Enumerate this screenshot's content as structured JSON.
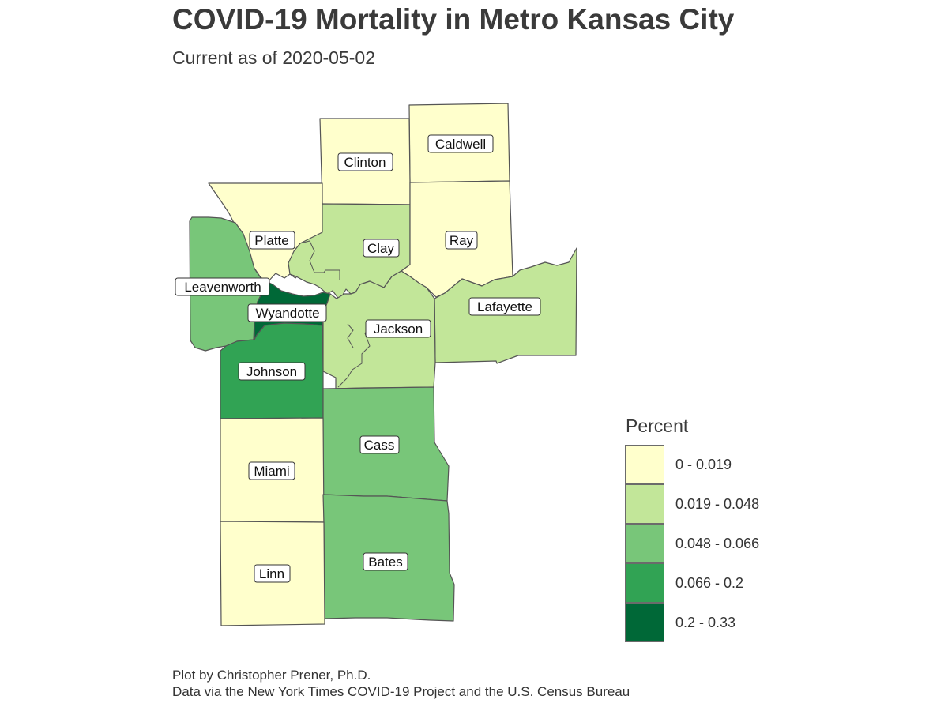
{
  "title": "COVID-19 Mortality in Metro Kansas City",
  "subtitle": "Current as of 2020-05-02",
  "legend": {
    "title": "Percent",
    "bins": [
      {
        "label": "0 - 0.019",
        "color": "#ffffcc"
      },
      {
        "label": "0.019 - 0.048",
        "color": "#c2e699"
      },
      {
        "label": "0.048 - 0.066",
        "color": "#78c679"
      },
      {
        "label": "0.066 - 0.2",
        "color": "#31a354"
      },
      {
        "label": "0.2 - 0.33",
        "color": "#006837"
      }
    ]
  },
  "counties": [
    {
      "name": "Caldwell",
      "bin": 0
    },
    {
      "name": "Clinton",
      "bin": 0
    },
    {
      "name": "Platte",
      "bin": 0
    },
    {
      "name": "Clay",
      "bin": 1
    },
    {
      "name": "Ray",
      "bin": 0
    },
    {
      "name": "Leavenworth",
      "bin": 2
    },
    {
      "name": "Wyandotte",
      "bin": 4
    },
    {
      "name": "Lafayette",
      "bin": 1
    },
    {
      "name": "Jackson",
      "bin": 1
    },
    {
      "name": "Johnson",
      "bin": 3
    },
    {
      "name": "Cass",
      "bin": 2
    },
    {
      "name": "Miami",
      "bin": 0
    },
    {
      "name": "Bates",
      "bin": 2
    },
    {
      "name": "Linn",
      "bin": 0
    }
  ],
  "caption": {
    "line1": "Plot by Christopher Prener, Ph.D.",
    "line2": "Data via the New York Times COVID-19 Project and the U.S. Census Bureau"
  }
}
